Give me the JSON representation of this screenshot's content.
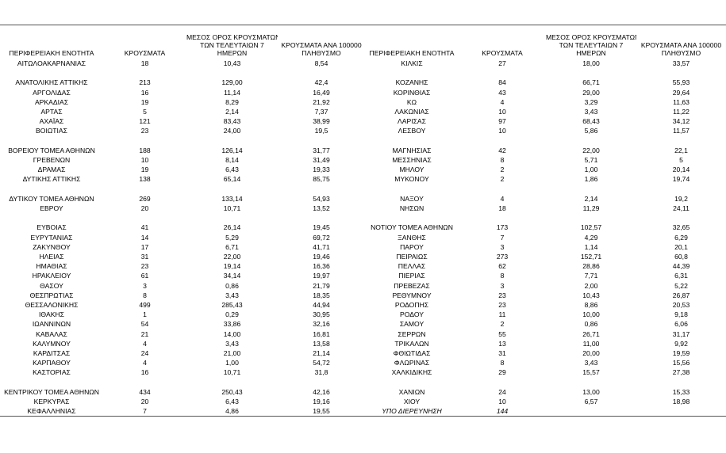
{
  "headers": {
    "left": [
      [
        "ΠΕΡΙΦΕΡΕΙΑΚΗ ΕΝΟΤΗΤΑ"
      ],
      [
        "ΚΡΟΥΣΜΑΤΑ"
      ],
      [
        "ΜΕΣΟΣ ΟΡΟΣ ΚΡΟΥΣΜΑΤΩΝ",
        "ΤΩΝ ΤΕΛΕΥΤΑΙΩΝ 7",
        "ΗΜΕΡΩΝ"
      ],
      [
        "ΚΡΟΥΣΜΑΤΑ ΑΝΑ 100000",
        "ΠΛΗΘΥΣΜΟ"
      ]
    ],
    "right": [
      [
        "ΠΕΡΙΦΕΡΕΙΑΚΗ ΕΝΟΤΗΤΑ"
      ],
      [
        "ΚΡΟΥΣΜΑΤΑ"
      ],
      [
        "ΜΕΣΟΣ ΟΡΟΣ ΚΡΟΥΣΜΑΤΩΝ",
        "ΤΩΝ ΤΕΛΕΥΤΑΙΩΝ 7",
        "ΗΜΕΡΩΝ"
      ],
      [
        "ΚΡΟΥΣΜΑΤΑ ΑΝΑ 100000",
        "ΠΛΗΘΥΣΜΟ"
      ]
    ]
  },
  "rows": [
    {
      "left": [
        "ΑΙΤΩΛΟΑΚΑΡΝΑΝΙΑΣ",
        "18",
        "10,43",
        "8,54"
      ],
      "right": [
        "ΚΙΛΚΙΣ",
        "27",
        "18,00",
        "33,57"
      ]
    },
    {
      "left": null,
      "right": null
    },
    {
      "left": [
        "ΑΝΑΤΟΛΙΚΗΣ ΑΤΤΙΚΗΣ",
        "213",
        "129,00",
        "42,4"
      ],
      "right": [
        "ΚΟΖΑΝΗΣ",
        "84",
        "66,71",
        "55,93"
      ]
    },
    {
      "left": [
        "ΑΡΓΟΛΙΔΑΣ",
        "16",
        "11,14",
        "16,49"
      ],
      "right": [
        "ΚΟΡΙΝΘΙΑΣ",
        "43",
        "29,00",
        "29,64"
      ]
    },
    {
      "left": [
        "ΑΡΚΑΔΙΑΣ",
        "19",
        "8,29",
        "21,92"
      ],
      "right": [
        "ΚΩ",
        "4",
        "3,29",
        "11,63"
      ]
    },
    {
      "left": [
        "ΑΡΤΑΣ",
        "5",
        "2,14",
        "7,37"
      ],
      "right": [
        "ΛΑΚΩΝΙΑΣ",
        "10",
        "3,43",
        "11,22"
      ]
    },
    {
      "left": [
        "ΑΧΑΪΑΣ",
        "121",
        "83,43",
        "38,99"
      ],
      "right": [
        "ΛΑΡΙΣΑΣ",
        "97",
        "68,43",
        "34,12"
      ]
    },
    {
      "left": [
        "ΒΟΙΩΤΙΑΣ",
        "23",
        "24,00",
        "19,5"
      ],
      "right": [
        "ΛΕΣΒΟΥ",
        "10",
        "5,86",
        "11,57"
      ]
    },
    {
      "left": null,
      "right": null
    },
    {
      "left": [
        "ΒΟΡΕΙΟΥ ΤΟΜΕΑ ΑΘΗΝΩΝ",
        "188",
        "126,14",
        "31,77"
      ],
      "right": [
        "ΜΑΓΝΗΣΙΑΣ",
        "42",
        "22,00",
        "22,1"
      ]
    },
    {
      "left": [
        "ΓΡΕΒΕΝΩΝ",
        "10",
        "8,14",
        "31,49"
      ],
      "right": [
        "ΜΕΣΣΗΝΙΑΣ",
        "8",
        "5,71",
        "5"
      ]
    },
    {
      "left": [
        "ΔΡΑΜΑΣ",
        "19",
        "6,43",
        "19,33"
      ],
      "right": [
        "ΜΗΛΟΥ",
        "2",
        "1,00",
        "20,14"
      ]
    },
    {
      "left": [
        "ΔΥΤΙΚΗΣ ΑΤΤΙΚΗΣ",
        "138",
        "65,14",
        "85,75"
      ],
      "right": [
        "ΜΥΚΟΝΟΥ",
        "2",
        "1,86",
        "19,74"
      ]
    },
    {
      "left": null,
      "right": null
    },
    {
      "left": [
        "ΔΥΤΙΚΟΥ ΤΟΜΕΑ ΑΘΗΝΩΝ",
        "269",
        "133,14",
        "54,93"
      ],
      "right": [
        "ΝΑΞΟΥ",
        "4",
        "2,14",
        "19,2"
      ]
    },
    {
      "left": [
        "ΕΒΡΟΥ",
        "20",
        "10,71",
        "13,52"
      ],
      "right": [
        "ΝΗΣΩΝ",
        "18",
        "11,29",
        "24,11"
      ]
    },
    {
      "left": null,
      "right": null
    },
    {
      "left": [
        "ΕΥΒΟΙΑΣ",
        "41",
        "26,14",
        "19,45"
      ],
      "right": [
        "ΝΟΤΙΟΥ ΤΟΜΕΑ ΑΘΗΝΩΝ",
        "173",
        "102,57",
        "32,65"
      ]
    },
    {
      "left": [
        "ΕΥΡΥΤΑΝΙΑΣ",
        "14",
        "5,29",
        "69,72"
      ],
      "right": [
        "ΞΑΝΘΗΣ",
        "7",
        "4,29",
        "6,29"
      ]
    },
    {
      "left": [
        "ΖΑΚΥΝΘΟΥ",
        "17",
        "6,71",
        "41,71"
      ],
      "right": [
        "ΠΑΡΟΥ",
        "3",
        "1,14",
        "20,1"
      ]
    },
    {
      "left": [
        "ΗΛΕΙΑΣ",
        "31",
        "22,00",
        "19,46"
      ],
      "right": [
        "ΠΕΙΡΑΙΩΣ",
        "273",
        "152,71",
        "60,8"
      ]
    },
    {
      "left": [
        "ΗΜΑΘΙΑΣ",
        "23",
        "19,14",
        "16,36"
      ],
      "right": [
        "ΠΕΛΛΑΣ",
        "62",
        "28,86",
        "44,39"
      ]
    },
    {
      "left": [
        "ΗΡΑΚΛΕΙΟΥ",
        "61",
        "34,14",
        "19,97"
      ],
      "right": [
        "ΠΙΕΡΙΑΣ",
        "8",
        "7,71",
        "6,31"
      ]
    },
    {
      "left": [
        "ΘΑΣΟΥ",
        "3",
        "0,86",
        "21,79"
      ],
      "right": [
        "ΠΡΕΒΕΖΑΣ",
        "3",
        "2,00",
        "5,22"
      ]
    },
    {
      "left": [
        "ΘΕΣΠΡΩΤΙΑΣ",
        "8",
        "3,43",
        "18,35"
      ],
      "right": [
        "ΡΕΘΥΜΝΟΥ",
        "23",
        "10,43",
        "26,87"
      ]
    },
    {
      "left": [
        "ΘΕΣΣΑΛΟΝΙΚΗΣ",
        "499",
        "285,43",
        "44,94"
      ],
      "right": [
        "ΡΟΔΟΠΗΣ",
        "23",
        "8,86",
        "20,53"
      ]
    },
    {
      "left": [
        "ΙΘΑΚΗΣ",
        "1",
        "0,29",
        "30,95"
      ],
      "right": [
        "ΡΟΔΟΥ",
        "11",
        "10,00",
        "9,18"
      ]
    },
    {
      "left": [
        "ΙΩΑΝΝΙΝΩΝ",
        "54",
        "33,86",
        "32,16"
      ],
      "right": [
        "ΣΑΜΟΥ",
        "2",
        "0,86",
        "6,06"
      ]
    },
    {
      "left": [
        "ΚΑΒΑΛΑΣ",
        "21",
        "14,00",
        "16,81"
      ],
      "right": [
        "ΣΕΡΡΩΝ",
        "55",
        "26,71",
        "31,17"
      ]
    },
    {
      "left": [
        "ΚΑΛΥΜΝΟΥ",
        "4",
        "3,43",
        "13,58"
      ],
      "right": [
        "ΤΡΙΚΑΛΩΝ",
        "13",
        "11,00",
        "9,92"
      ]
    },
    {
      "left": [
        "ΚΑΡΔΙΤΣΑΣ",
        "24",
        "21,00",
        "21,14"
      ],
      "right": [
        "ΦΘΙΩΤΙΔΑΣ",
        "31",
        "20,00",
        "19,59"
      ]
    },
    {
      "left": [
        "ΚΑΡΠΑΘΟΥ",
        "4",
        "1,00",
        "54,72"
      ],
      "right": [
        "ΦΛΩΡΙΝΑΣ",
        "8",
        "3,43",
        "15,56"
      ]
    },
    {
      "left": [
        "ΚΑΣΤΟΡΙΑΣ",
        "16",
        "10,71",
        "31,8"
      ],
      "right": [
        "ΧΑΛΚΙΔΙΚΗΣ",
        "29",
        "15,57",
        "27,38"
      ]
    },
    {
      "left": null,
      "right": null
    },
    {
      "left": [
        "ΚΕΝΤΡΙΚΟΥ ΤΟΜΕΑ ΑΘΗΝΩΝ",
        "434",
        "250,43",
        "42,16"
      ],
      "right": [
        "ΧΑΝΙΩΝ",
        "24",
        "13,00",
        "15,33"
      ]
    },
    {
      "left": [
        "ΚΕΡΚΥΡΑΣ",
        "20",
        "6,43",
        "19,16"
      ],
      "right": [
        "ΧΙΟΥ",
        "10",
        "6,57",
        "18,98"
      ]
    },
    {
      "left": [
        "ΚΕΦΑΛΛΗΝΙΑΣ",
        "7",
        "4,86",
        "19,55"
      ],
      "right": [
        "ΥΠΟ ΔΙΕΡΕΥΝΗΣΗ",
        "144"
      ]
    }
  ]
}
